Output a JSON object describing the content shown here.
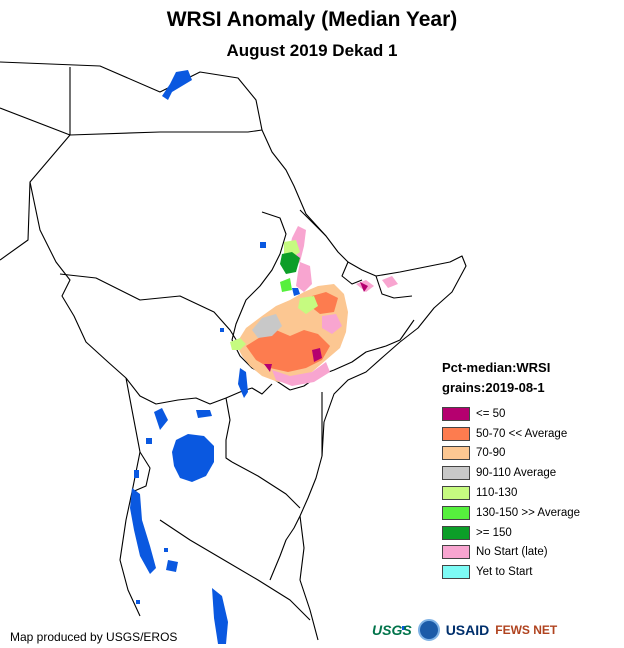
{
  "title": "WRSI Anomaly (Median Year)",
  "subtitle": "August 2019 Dekad 1",
  "legend": {
    "title_line1": "Pct-median:WRSI",
    "title_line2": "grains:2019-08-1",
    "items": [
      {
        "label": "<= 50",
        "color": "#b5006f"
      },
      {
        "label": "50-70 << Average",
        "color": "#fd7c4f"
      },
      {
        "label": "70-90",
        "color": "#fcc792"
      },
      {
        "label": "90-110 Average",
        "color": "#c8c8c8"
      },
      {
        "label": "110-130",
        "color": "#c6fb80"
      },
      {
        "label": "130-150 >> Average",
        "color": "#56f03d"
      },
      {
        "label": ">= 150",
        "color": "#0c9e28"
      },
      {
        "label": "No Start (late)",
        "color": "#f8a5d0"
      },
      {
        "label": "Yet to Start",
        "color": "#7dfbf5"
      }
    ]
  },
  "credit": "Map produced by USGS/EROS",
  "logos": {
    "usgs": "USGS",
    "usaid": "USAID",
    "fews": "FEWS NET"
  },
  "colors": {
    "water": "#0a58e0",
    "border": "#000000"
  }
}
